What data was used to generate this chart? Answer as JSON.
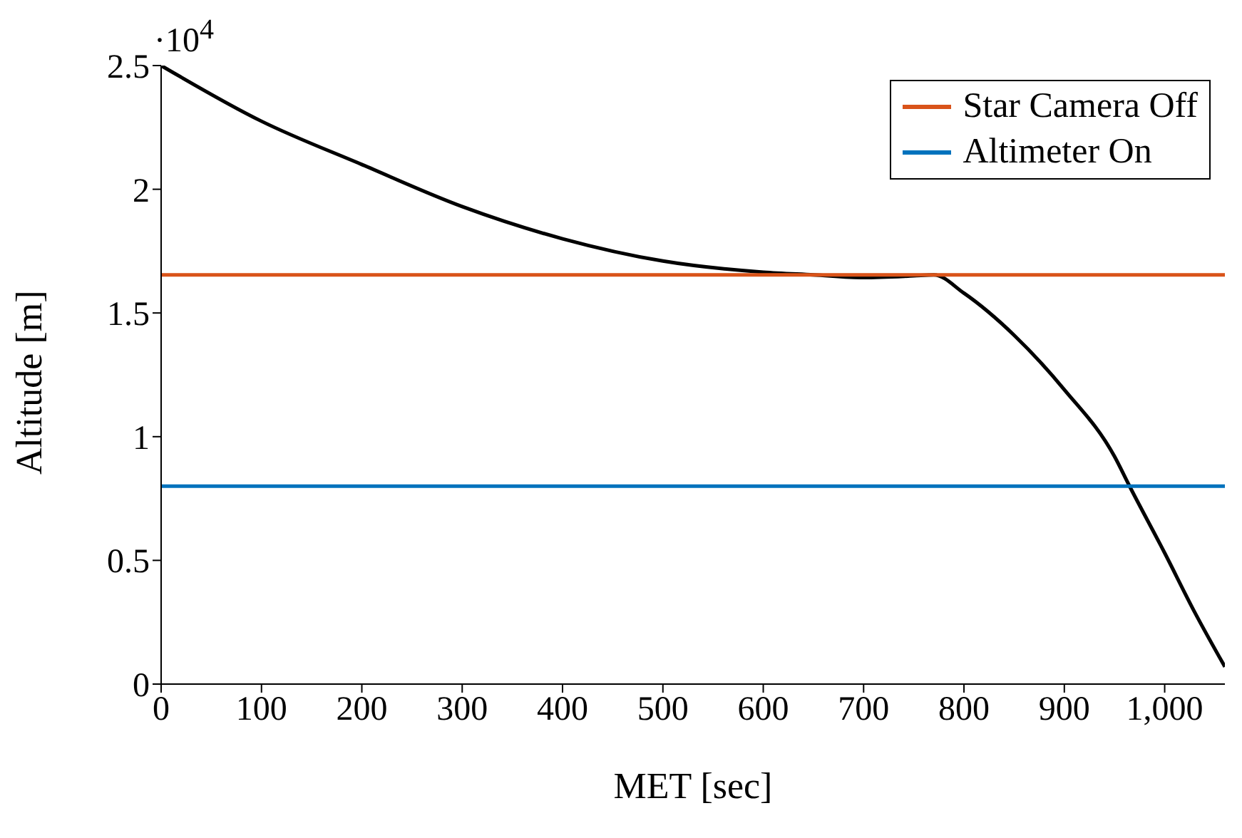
{
  "chart_data": {
    "type": "line",
    "xlabel": "MET [sec]",
    "ylabel": "Altitude [m]",
    "annotations": [
      "·10$^{4}$"
    ],
    "xlim": [
      0,
      1060
    ],
    "xticks": [
      0,
      100,
      200,
      300,
      400,
      500,
      600,
      700,
      800,
      900,
      {
        "value": 1000,
        "label": "1,000"
      }
    ],
    "ylim": [
      0,
      2.5
    ],
    "yticks": [
      0,
      0.5,
      1,
      1.5,
      2,
      2.5
    ],
    "legend": "top right",
    "grid": false,
    "marker": "none",
    "line_style": "solid",
    "series": [
      {
        "color": "#000000",
        "x": [
          0,
          100,
          200,
          300,
          400,
          500,
          600,
          650,
          700,
          750,
          770,
          800,
          850,
          900,
          950,
          965,
          1000,
          1030,
          1060
        ],
        "values": [
          2.5,
          2.275,
          2.1,
          1.93,
          1.8,
          1.71,
          1.665,
          1.654,
          1.643,
          1.65,
          1.654,
          1.58,
          1.41,
          1.19,
          0.92,
          0.8,
          0.53,
          0.29,
          0.07
        ]
      },
      {
        "name": "Star Camera Off",
        "color": "#d95319",
        "x": [
          0,
          1060
        ],
        "values": [
          1.654,
          1.654
        ]
      },
      {
        "name": "Altimeter On",
        "color": "#0072bd",
        "x": [
          0,
          1060
        ],
        "values": [
          0.8,
          0.8
        ]
      }
    ]
  }
}
